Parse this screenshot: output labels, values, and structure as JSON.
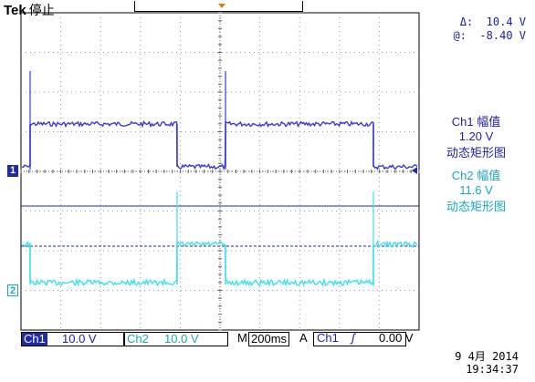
{
  "header": {
    "brand": "Tek",
    "status": "停止"
  },
  "cursor": {
    "delta_label": "Δ:",
    "delta_value": "10.4 V",
    "at_label": "@:",
    "at_value": "-8.40 V"
  },
  "ch1_measure": {
    "name": "Ch1 幅值",
    "value": "1.20 V",
    "mode": "动态矩形图"
  },
  "ch2_measure": {
    "name": "Ch2 幅值",
    "value": "11.6 V",
    "mode": "动态矩形图"
  },
  "markers": {
    "ch1": "1",
    "ch2": "2"
  },
  "bottom_bar": {
    "ch1_label": "Ch1",
    "ch1_scale": "10.0 V",
    "ch2_label": "Ch2",
    "ch2_scale": "10.0 V",
    "timebase_prefix": "M",
    "timebase": "200ms",
    "trigger_mode": "A",
    "trigger_src": "Ch1",
    "trigger_slope": "ʃ",
    "trigger_level": "0.00 V"
  },
  "datetime": {
    "date": "9 4月  2014",
    "time": "19:34:37"
  },
  "colors": {
    "ch1": "#3a3ad8",
    "ch2": "#3fe0ef",
    "grid": "#9a9a9a"
  },
  "chart_data": {
    "type": "line",
    "x_divisions": 10,
    "y_divisions": 8,
    "series": [
      {
        "name": "Ch1",
        "shape": "square-wave",
        "high_fraction": 0.57
      },
      {
        "name": "Ch2",
        "shape": "inverted-square-wave",
        "high_fraction": 0.43
      }
    ]
  }
}
